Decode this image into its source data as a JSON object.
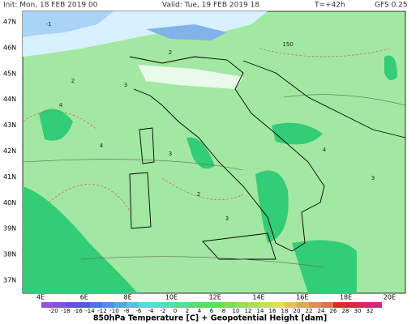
{
  "header": {
    "init": "Init: Mon, 18 FEB 2019 00",
    "valid": "Valid: Tue, 19 FEB 2019 18",
    "lead": "T=+42h",
    "model": "GFS 0.25"
  },
  "map": {
    "lat_labels": [
      "47N",
      "46N",
      "45N",
      "44N",
      "43N",
      "42N",
      "41N",
      "40N",
      "39N",
      "38N",
      "37N"
    ],
    "lon_labels": [
      "4E",
      "6E",
      "8E",
      "10E",
      "12E",
      "14E",
      "16E",
      "18E",
      "20E"
    ],
    "contour_labels": [
      "4",
      "3",
      "2",
      "3",
      "4",
      "2",
      "3",
      "150",
      "4",
      "3",
      "2",
      "-1"
    ]
  },
  "colorbar": {
    "labels": [
      -20,
      -18,
      -16,
      -14,
      -12,
      -10,
      -8,
      -6,
      -4,
      -2,
      0,
      2,
      4,
      6,
      8,
      10,
      12,
      14,
      16,
      18,
      20,
      22,
      24,
      26,
      28,
      30,
      32
    ]
  },
  "caption": "850hPa Temperature [C] + Geopotential Height [dam]"
}
